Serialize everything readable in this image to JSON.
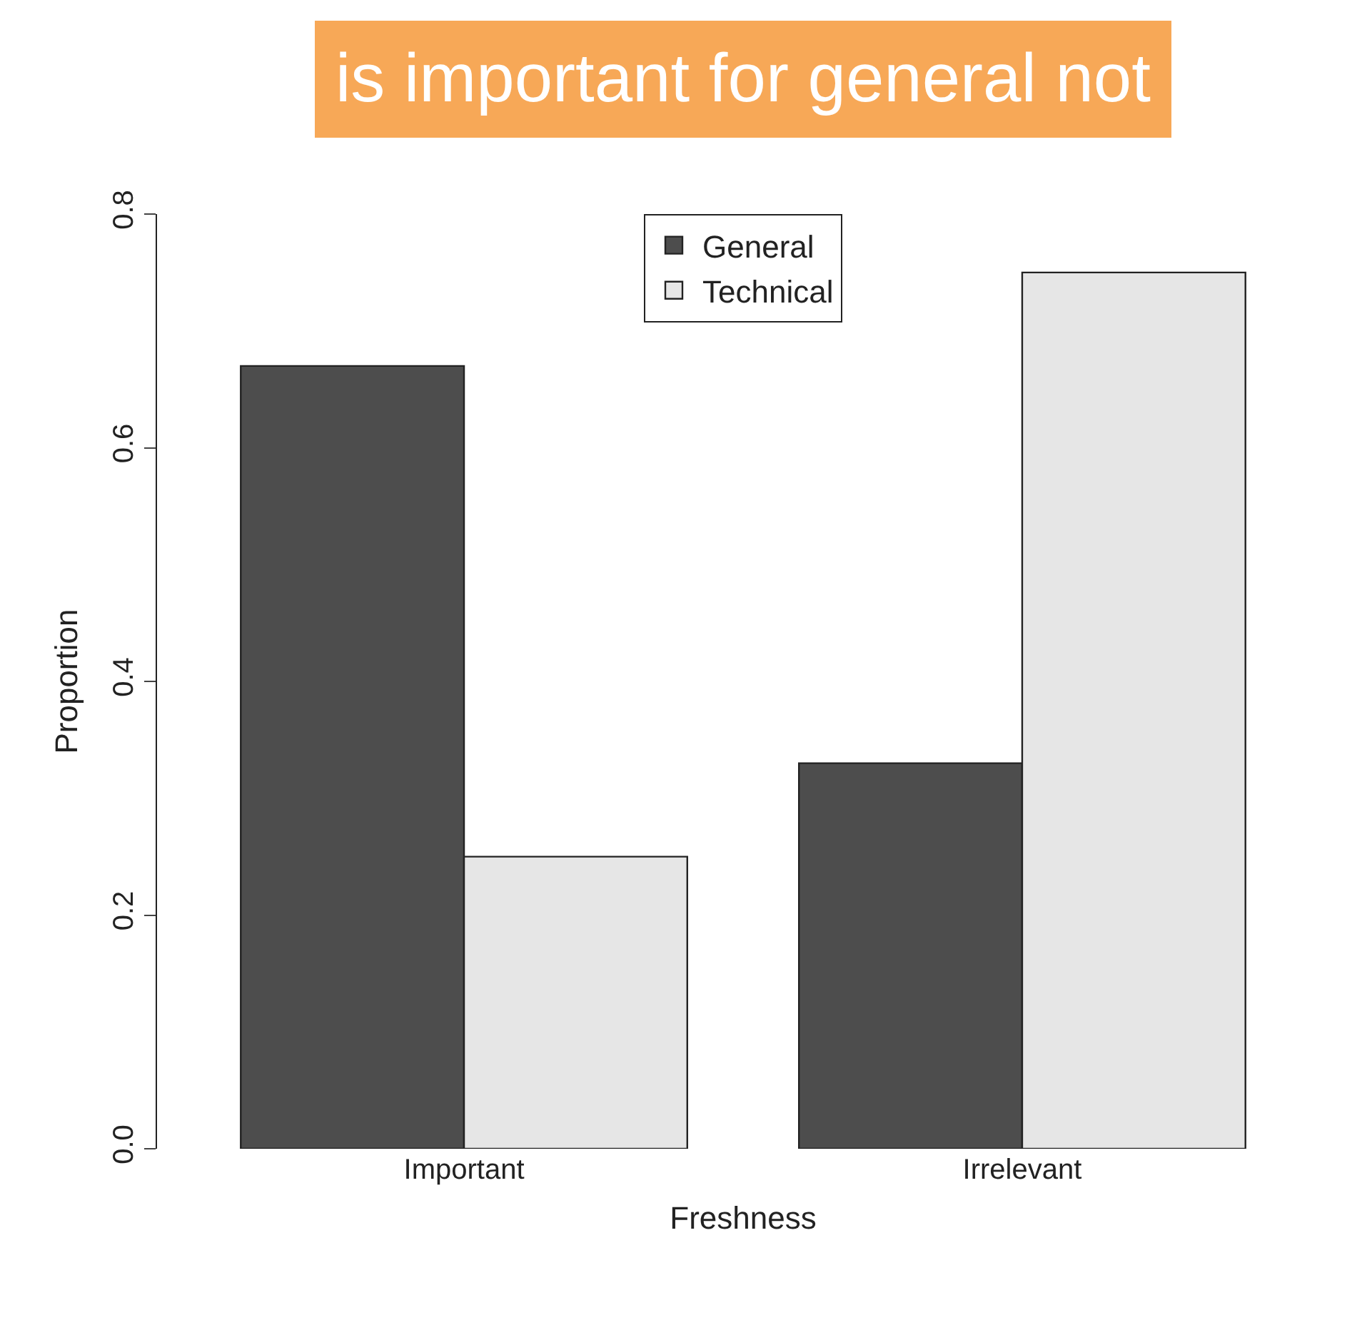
{
  "chart_data": {
    "type": "bar",
    "xlabel": "Freshness",
    "ylabel": "Proportion",
    "categories": [
      "Important",
      "Irrelevant"
    ],
    "series": [
      {
        "name": "General",
        "color": "#4d4d4d",
        "values": [
          0.67,
          0.33
        ]
      },
      {
        "name": "Technical",
        "color": "#e6e6e6",
        "values": [
          0.25,
          0.75
        ]
      }
    ],
    "ylim": [
      0,
      0.8
    ],
    "yticks": [
      {
        "value": 0,
        "label": "0.0"
      },
      {
        "value": 0.2,
        "label": "0.2"
      },
      {
        "value": 0.4,
        "label": "0.4"
      },
      {
        "value": 0.6,
        "label": "0.6"
      },
      {
        "value": 0.8,
        "label": "0.8"
      }
    ],
    "legend": "top",
    "annotations": [
      "is important for general not"
    ]
  }
}
